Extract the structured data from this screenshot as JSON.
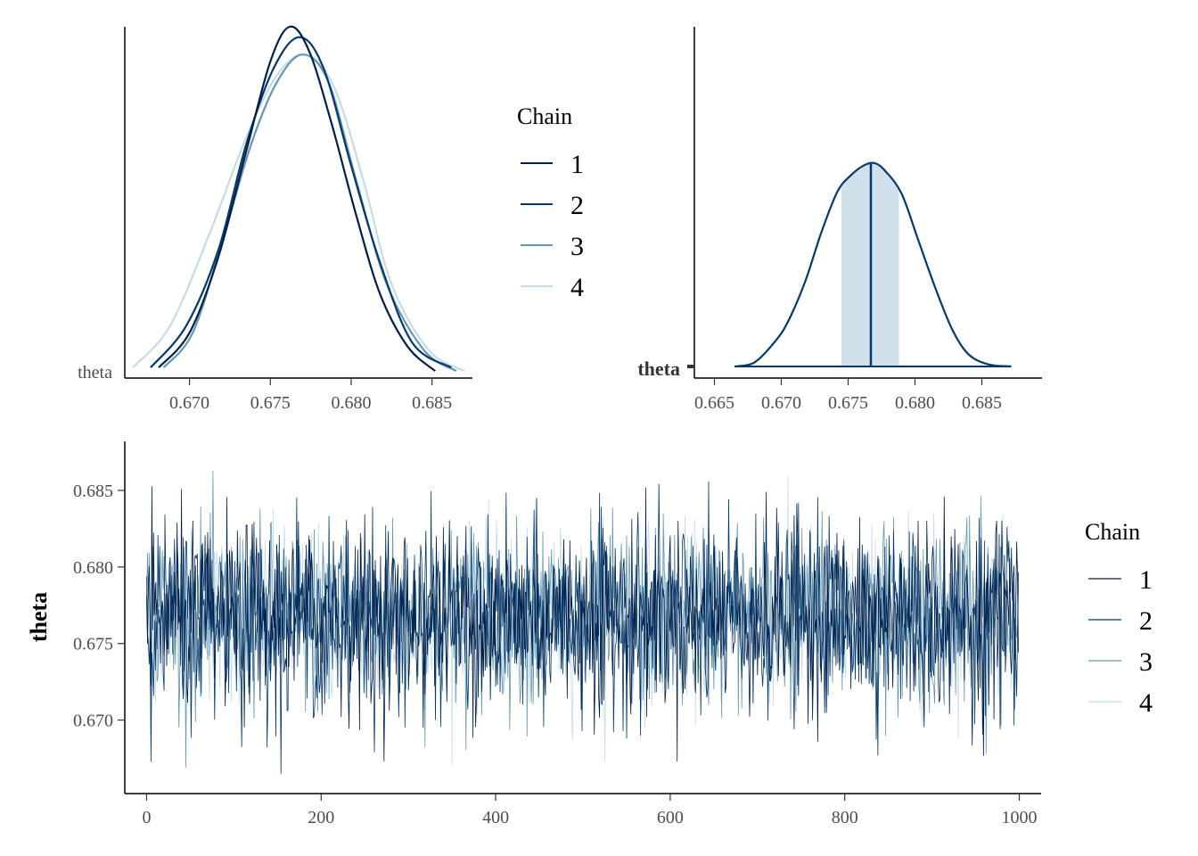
{
  "chart_data": [
    {
      "type": "line",
      "panel": "density-overlay",
      "title": "",
      "xlabel": "",
      "ylabel": "",
      "parameter_label": "theta",
      "xlim": [
        0.666,
        0.6875
      ],
      "x_ticks": [
        "0.670",
        "0.675",
        "0.680",
        "0.685"
      ],
      "x_tick_values": [
        0.67,
        0.675,
        0.68,
        0.685
      ],
      "legend": {
        "title": "Chain",
        "position": "right",
        "entries": [
          "1",
          "2",
          "3",
          "4"
        ]
      },
      "colors": [
        "#011f4b",
        "#03396c",
        "#6497b1",
        "#c6dbe9"
      ],
      "series": [
        {
          "name": "1",
          "x": [
            0.6681,
            0.67,
            0.6718,
            0.6735,
            0.675,
            0.6762,
            0.6774,
            0.6788,
            0.6803,
            0.6818,
            0.6835,
            0.6852
          ],
          "density": [
            0.02,
            0.12,
            0.34,
            0.64,
            0.9,
            1.0,
            0.93,
            0.72,
            0.46,
            0.23,
            0.08,
            0.01
          ]
        },
        {
          "name": "2",
          "x": [
            0.6676,
            0.6698,
            0.6718,
            0.6735,
            0.6752,
            0.6768,
            0.6783,
            0.68,
            0.6818,
            0.6838,
            0.6862
          ],
          "density": [
            0.02,
            0.14,
            0.36,
            0.66,
            0.88,
            0.97,
            0.88,
            0.6,
            0.32,
            0.09,
            0.02
          ]
        },
        {
          "name": "3",
          "x": [
            0.6684,
            0.6702,
            0.672,
            0.6738,
            0.6754,
            0.677,
            0.6786,
            0.6803,
            0.6822,
            0.6845,
            0.6865
          ],
          "density": [
            0.02,
            0.12,
            0.38,
            0.66,
            0.84,
            0.92,
            0.84,
            0.56,
            0.26,
            0.07,
            0.01
          ]
        },
        {
          "name": "4",
          "x": [
            0.6665,
            0.6688,
            0.6712,
            0.6735,
            0.6754,
            0.6772,
            0.679,
            0.6808,
            0.6825,
            0.6848,
            0.687
          ],
          "density": [
            0.02,
            0.14,
            0.4,
            0.68,
            0.86,
            0.92,
            0.82,
            0.55,
            0.26,
            0.07,
            0.01
          ]
        }
      ]
    },
    {
      "type": "area",
      "panel": "posterior-area",
      "title": "",
      "xlabel": "",
      "ylabel": "",
      "parameter_label": "theta",
      "xlim": [
        0.6635,
        0.6895
      ],
      "x_ticks": [
        "0.665",
        "0.670",
        "0.675",
        "0.680",
        "0.685"
      ],
      "x_tick_values": [
        0.665,
        0.67,
        0.675,
        0.68,
        0.685
      ],
      "median": 0.6767,
      "interval": [
        0.6745,
        0.6788
      ],
      "x": [
        0.6665,
        0.668,
        0.6695,
        0.6705,
        0.6718,
        0.673,
        0.6742,
        0.6752,
        0.6762,
        0.677,
        0.6778,
        0.679,
        0.6802,
        0.6815,
        0.6828,
        0.684,
        0.6855,
        0.6872
      ],
      "density": [
        0.0,
        0.02,
        0.12,
        0.22,
        0.42,
        0.66,
        0.86,
        0.94,
        0.99,
        1.0,
        0.96,
        0.85,
        0.63,
        0.39,
        0.18,
        0.06,
        0.01,
        0.0
      ],
      "line_color": "#03396c",
      "fill_color": "#d1e1ec"
    },
    {
      "type": "line",
      "panel": "trace",
      "title": "",
      "xlabel": "",
      "ylabel": "theta",
      "xlim": [
        -25,
        1025
      ],
      "ylim": [
        0.6652,
        0.6882
      ],
      "x_ticks": [
        "0",
        "200",
        "400",
        "600",
        "800",
        "1000"
      ],
      "x_tick_values": [
        0,
        200,
        400,
        600,
        800,
        1000
      ],
      "y_ticks": [
        "0.670",
        "0.675",
        "0.680",
        "0.685"
      ],
      "y_tick_values": [
        0.67,
        0.675,
        0.68,
        0.685
      ],
      "legend": {
        "title": "Chain",
        "position": "right",
        "entries": [
          "1",
          "2",
          "3",
          "4"
        ]
      },
      "colors": [
        "#011f4b",
        "#03396c",
        "#6497b1",
        "#c6dbe9"
      ],
      "iterations": 1000,
      "series_summary": [
        {
          "name": "1",
          "mean": 0.6767,
          "sd": 0.003,
          "min": 0.6673,
          "max": 0.6874
        },
        {
          "name": "2",
          "mean": 0.6767,
          "sd": 0.003,
          "min": 0.6665,
          "max": 0.6866
        },
        {
          "name": "3",
          "mean": 0.6768,
          "sd": 0.003,
          "min": 0.6669,
          "max": 0.687
        },
        {
          "name": "4",
          "mean": 0.6768,
          "sd": 0.0028,
          "min": 0.6663,
          "max": 0.6864
        }
      ]
    }
  ]
}
